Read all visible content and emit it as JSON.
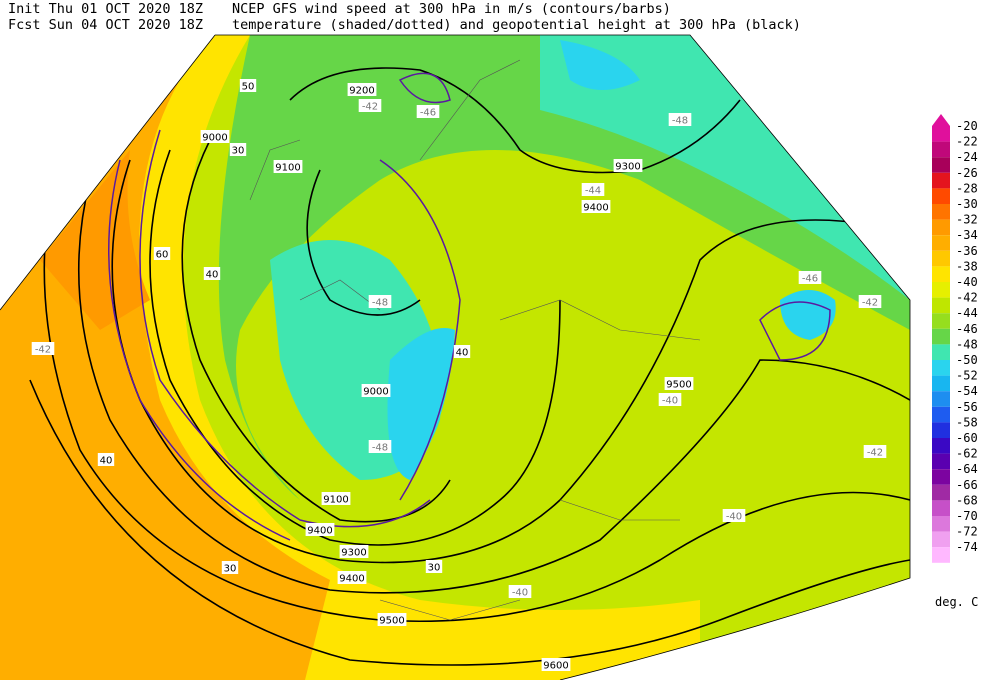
{
  "header": {
    "init": "Init  Thu 01 OCT 2020 18Z",
    "fcst": "Fcst Sun 04 OCT 2020 18Z",
    "line1": "NCEP GFS wind speed at 300 hPa in m/s (contours/barbs)",
    "line2": "temperature (shaded/dotted) and geopotential height at 300 hPa (black)"
  },
  "colorbar": {
    "labels": [
      "-20",
      "-22",
      "-24",
      "-26",
      "-28",
      "-30",
      "-32",
      "-34",
      "-36",
      "-38",
      "-40",
      "-42",
      "-44",
      "-46",
      "-48",
      "-50",
      "-52",
      "-54",
      "-56",
      "-58",
      "-60",
      "-62",
      "-64",
      "-66",
      "-68",
      "-70",
      "-72",
      "-74"
    ],
    "colors": [
      "#e0109c",
      "#c0087a",
      "#a8005a",
      "#e4141e",
      "#ff4a00",
      "#ff7400",
      "#ff9a00",
      "#ffae00",
      "#ffc800",
      "#ffe400",
      "#e6ef00",
      "#bfe600",
      "#96de1e",
      "#66d648",
      "#40e6b0",
      "#2ad4ee",
      "#18b6f0",
      "#1e8ef0",
      "#1e5cf0",
      "#2030e0",
      "#3a08c4",
      "#5a00b0",
      "#7c04a0",
      "#a02aa4",
      "#c650c8",
      "#dc78dc",
      "#f0a0f0",
      "#ffb8ff"
    ],
    "unit": "deg. C"
  },
  "map_labels": [
    "9000",
    "9100",
    "9200",
    "9300",
    "9400",
    "9500",
    "9600",
    "9000",
    "9100",
    "9300",
    "9400",
    "9500",
    "9400",
    "30",
    "40",
    "50",
    "60",
    "40",
    "30",
    "30",
    "40",
    "-48",
    "-42",
    "-48",
    "-44",
    "-40",
    "-42",
    "-46",
    "-40",
    "-42",
    "-42",
    "-48",
    "-40",
    "-46"
  ]
}
